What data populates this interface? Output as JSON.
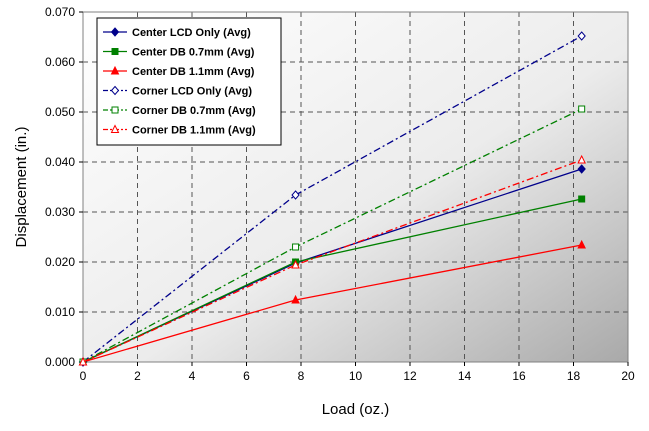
{
  "chart_data": {
    "type": "line",
    "title": "",
    "xlabel": "Load (oz.)",
    "ylabel": "Displacement (in.)",
    "xlim": [
      0,
      20
    ],
    "ylim": [
      0,
      0.07
    ],
    "x_ticks": [
      "0",
      "2",
      "4",
      "6",
      "8",
      "10",
      "12",
      "14",
      "16",
      "18",
      "20"
    ],
    "y_ticks": [
      "0.000",
      "0.010",
      "0.020",
      "0.030",
      "0.040",
      "0.050",
      "0.060",
      "0.070"
    ],
    "grid": true,
    "legend_position": "top-left",
    "series": [
      {
        "name": "Center LCD Only (Avg)",
        "color": "#00008B",
        "marker": "diamond-filled",
        "dash": "solid",
        "points": [
          [
            0,
            0.0
          ],
          [
            7.8,
            0.0198
          ],
          [
            18.3,
            0.0386
          ]
        ]
      },
      {
        "name": "Center DB 0.7mm  (Avg)",
        "color": "#008000",
        "marker": "square-filled",
        "dash": "solid",
        "points": [
          [
            0,
            0.0
          ],
          [
            7.8,
            0.02
          ],
          [
            18.3,
            0.0326
          ]
        ]
      },
      {
        "name": "Center DB 1.1mm (Avg)",
        "color": "#FF0000",
        "marker": "triangle-filled",
        "dash": "solid",
        "points": [
          [
            0,
            0.0
          ],
          [
            7.8,
            0.0124
          ],
          [
            18.3,
            0.0234
          ]
        ]
      },
      {
        "name": "Corner LCD Only (Avg)",
        "color": "#00008B",
        "marker": "diamond-open",
        "dash": "dashdot",
        "points": [
          [
            0,
            0.0
          ],
          [
            7.8,
            0.0334
          ],
          [
            18.3,
            0.0652
          ]
        ]
      },
      {
        "name": "Corner DB 0.7mm  (Avg)",
        "color": "#008000",
        "marker": "square-open",
        "dash": "dashdot",
        "points": [
          [
            0,
            0.0
          ],
          [
            7.8,
            0.023
          ],
          [
            18.3,
            0.0506
          ]
        ]
      },
      {
        "name": "Corner DB 1.1mm (Avg)",
        "color": "#FF0000",
        "marker": "triangle-open",
        "dash": "dashdot",
        "points": [
          [
            0,
            0.0
          ],
          [
            7.8,
            0.0194
          ],
          [
            18.3,
            0.0404
          ]
        ]
      }
    ]
  }
}
